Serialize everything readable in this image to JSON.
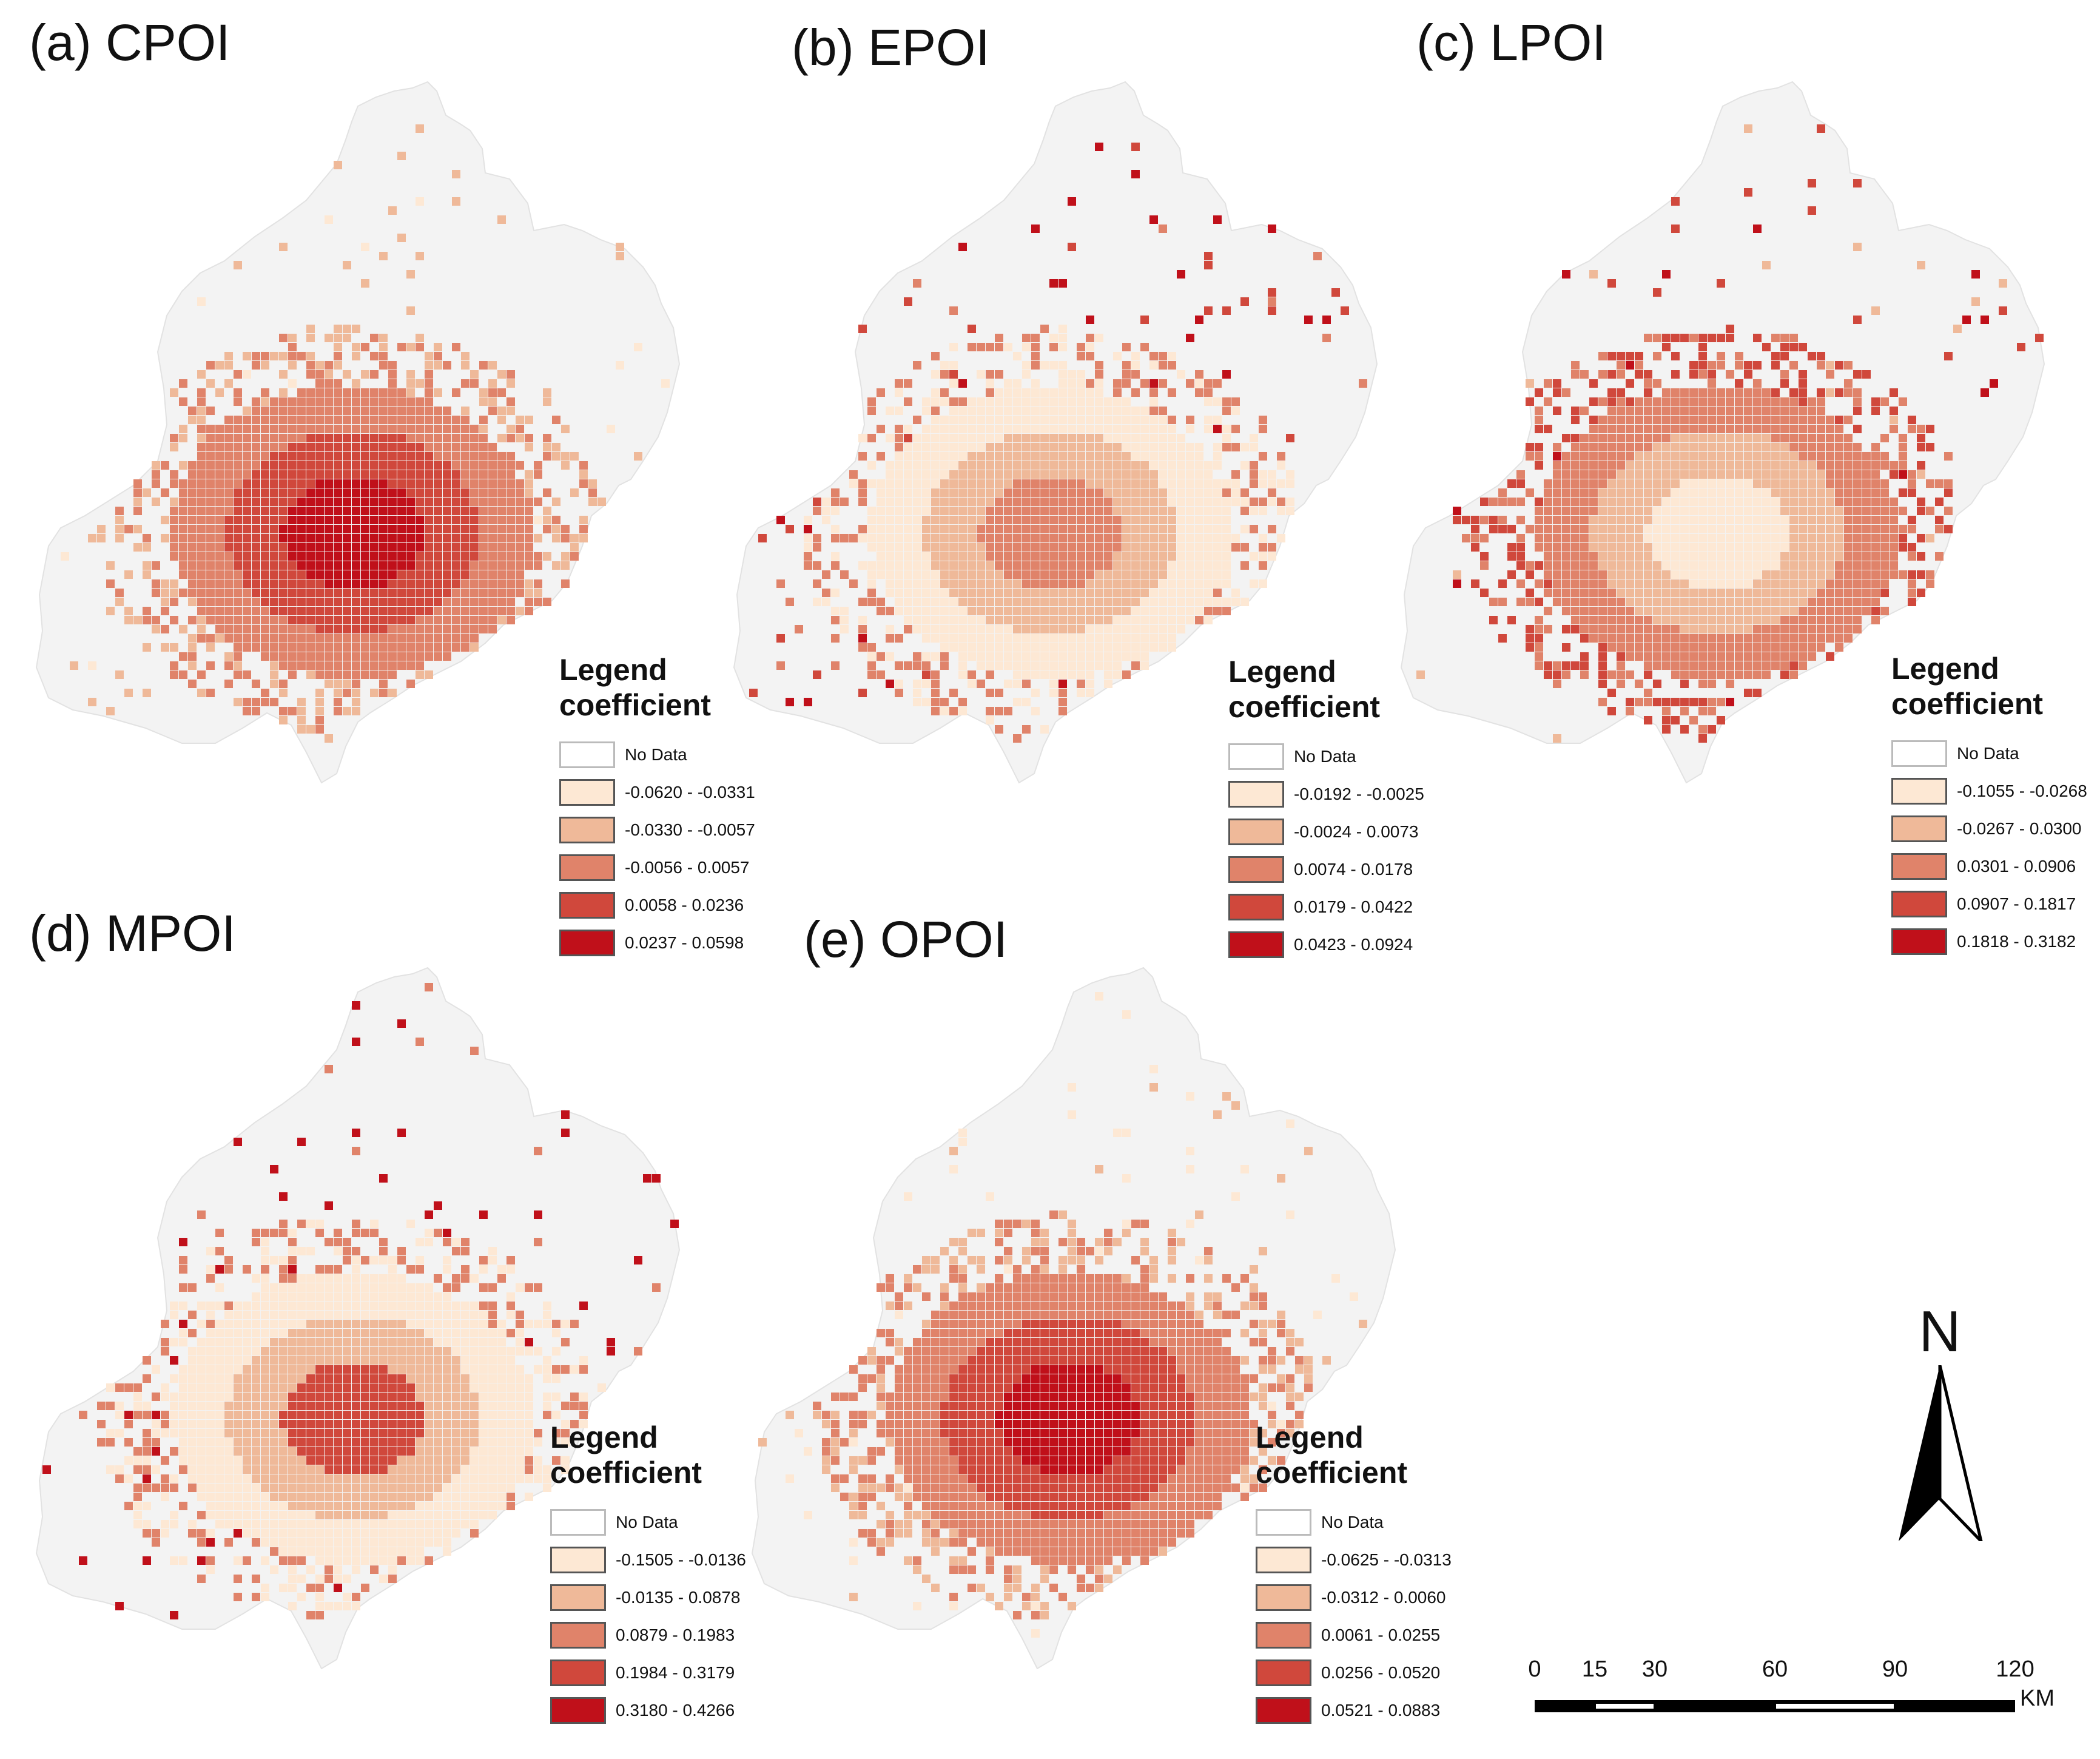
{
  "colors": {
    "nodata_fill": "#ffffff",
    "region_fill": "#f3f3f3",
    "class1": "#fde8d4",
    "class2": "#efb999",
    "class3": "#e0836a",
    "class4": "#d0483c",
    "class5": "#c0101a"
  },
  "panels": [
    {
      "title": "(a) CPOI",
      "legend_title": "Legend",
      "legend_subtitle": "coefficient",
      "classes": [
        "No Data",
        "-0.0620 - -0.0331",
        "-0.0330 - -0.0057",
        "-0.0056 - 0.0057",
        "0.0058 - 0.0236",
        "0.0237 - 0.0598"
      ]
    },
    {
      "title": "(b) EPOI",
      "legend_title": "Legend",
      "legend_subtitle": "coefficient",
      "classes": [
        "No Data",
        "-0.0192 - -0.0025",
        "-0.0024 - 0.0073",
        "0.0074 - 0.0178",
        "0.0179 - 0.0422",
        "0.0423 - 0.0924"
      ]
    },
    {
      "title": "(c) LPOI",
      "legend_title": "Legend",
      "legend_subtitle": "coefficient",
      "classes": [
        "No Data",
        "-0.1055 - -0.0268",
        "-0.0267 - 0.0300",
        "0.0301 - 0.0906",
        "0.0907 - 0.1817",
        "0.1818 - 0.3182"
      ]
    },
    {
      "title": "(d) MPOI",
      "legend_title": "Legend",
      "legend_subtitle": "coefficient",
      "classes": [
        "No Data",
        "-0.1505 - -0.0136",
        "-0.0135 - 0.0878",
        "0.0879 - 0.1983",
        "0.1984 - 0.3179",
        "0.3180 - 0.4266"
      ]
    },
    {
      "title": "(e) OPOI",
      "legend_title": "Legend",
      "legend_subtitle": "coefficient",
      "classes": [
        "No Data",
        "-0.0625 - -0.0313",
        "-0.0312 - 0.0060",
        "0.0061 - 0.0255",
        "0.0256 - 0.0520",
        "0.0521 - 0.0883"
      ]
    }
  ],
  "north_arrow": {
    "letter": "N"
  },
  "scale_bar": {
    "ticks": [
      0,
      15,
      30,
      60,
      90,
      120
    ],
    "labels": [
      "0",
      "15",
      "30",
      "60",
      "90",
      "120"
    ],
    "unit": "KM"
  }
}
